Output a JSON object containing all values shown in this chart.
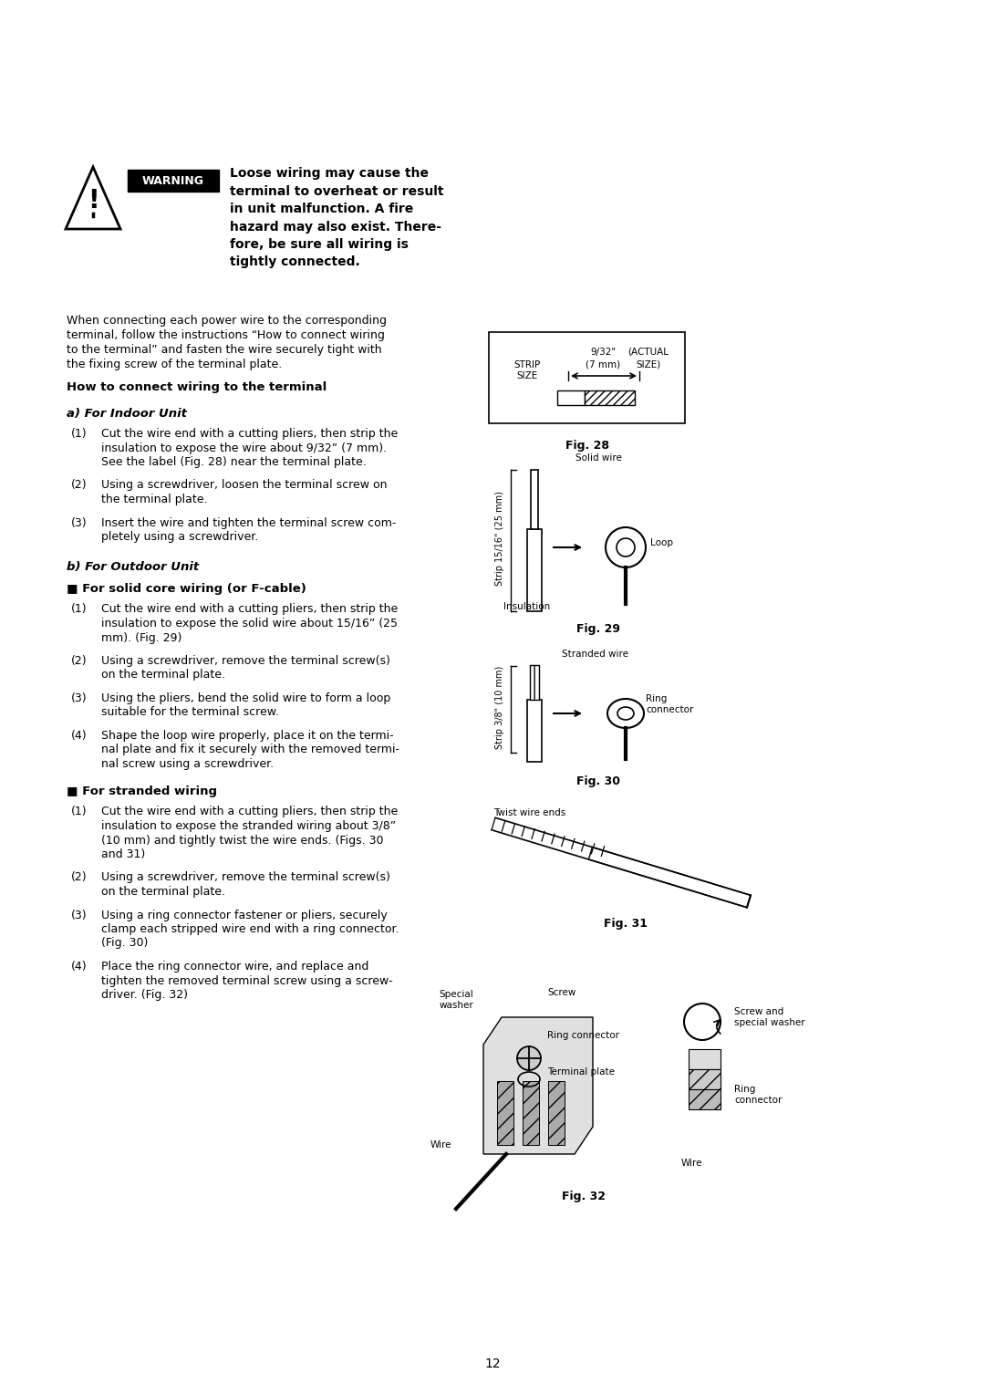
{
  "bg_color": "#ffffff",
  "page_number": "12",
  "warning_text_lines": [
    "Loose wiring may cause the",
    "terminal to overheat or result",
    "in unit malfunction. A fire",
    "hazard may also exist. There-",
    "fore, be sure all wiring is",
    "tightly connected."
  ],
  "intro_text_lines": [
    "When connecting each power wire to the corresponding",
    "terminal, follow the instructions “How to connect wiring",
    "to the terminal” and fasten the wire securely tight with",
    "the fixing screw of the terminal plate."
  ],
  "section_title": "How to connect wiring to the terminal",
  "section_a_title": "a) For Indoor Unit",
  "section_a_items": [
    [
      "(1)",
      "Cut the wire end with a cutting pliers, then strip the",
      "insulation to expose the wire about 9/32” (7 mm).",
      "See the label (Fig. 28) near the terminal plate."
    ],
    [
      "(2)",
      "Using a screwdriver, loosen the terminal screw on",
      "the terminal plate."
    ],
    [
      "(3)",
      "Insert the wire and tighten the terminal screw com-",
      "pletely using a screwdriver."
    ]
  ],
  "section_b_title": "b) For Outdoor Unit",
  "section_b1_title": "■ For solid core wiring (or F-cable)",
  "section_b1_items": [
    [
      "(1)",
      "Cut the wire end with a cutting pliers, then strip the",
      "insulation to expose the solid wire about 15/16” (25",
      "mm). (Fig. 29)"
    ],
    [
      "(2)",
      "Using a screwdriver, remove the terminal screw(s)",
      "on the terminal plate."
    ],
    [
      "(3)",
      "Using the pliers, bend the solid wire to form a loop",
      "suitable for the terminal screw."
    ],
    [
      "(4)",
      "Shape the loop wire properly, place it on the termi-",
      "nal plate and fix it securely with the removed termi-",
      "nal screw using a screwdriver."
    ]
  ],
  "section_b2_title": "■ For stranded wiring",
  "section_b2_items": [
    [
      "(1)",
      "Cut the wire end with a cutting pliers, then strip the",
      "insulation to expose the stranded wiring about 3/8”",
      "(10 mm) and tightly twist the wire ends. (Figs. 30",
      "and 31)"
    ],
    [
      "(2)",
      "Using a screwdriver, remove the terminal screw(s)",
      "on the terminal plate."
    ],
    [
      "(3)",
      "Using a ring connector fastener or pliers, securely",
      "clamp each stripped wire end with a ring connector.",
      "(Fig. 30)"
    ],
    [
      "(4)",
      "Place the ring connector wire, and replace and",
      "tighten the removed terminal screw using a screw-",
      "driver. (Fig. 32)"
    ]
  ],
  "fig28_label": "Fig. 28",
  "fig29_label": "Fig. 29",
  "fig30_label": "Fig. 30",
  "fig31_label": "Fig. 31",
  "fig32_label": "Fig. 32"
}
